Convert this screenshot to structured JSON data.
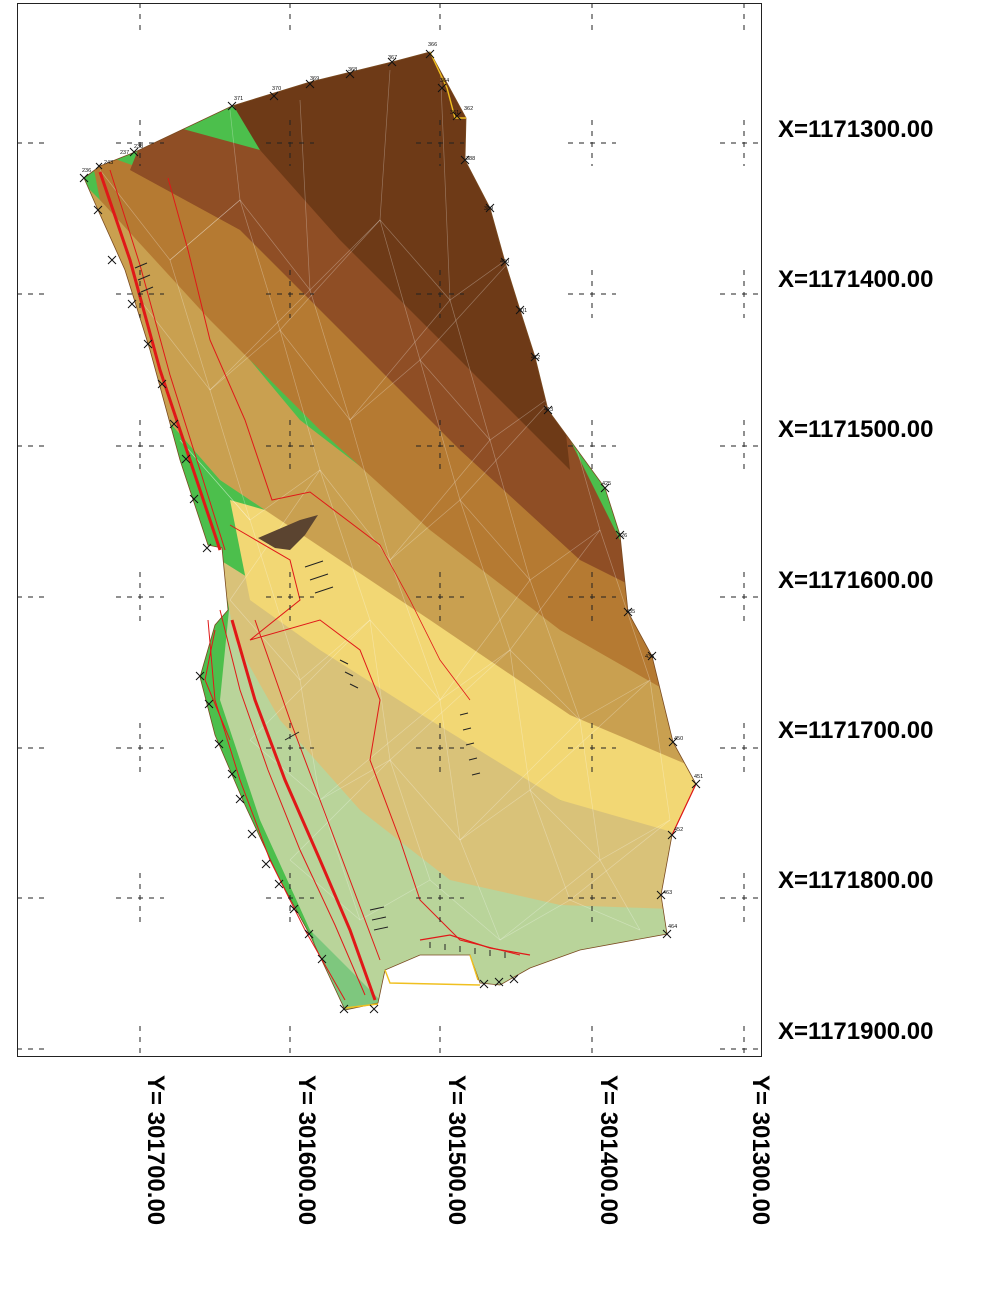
{
  "x_axis_labels": [
    "X=1171300.00",
    "X=1171400.00",
    "X=1171500.00",
    "X=1171600.00",
    "X=1171700.00",
    "X=1171800.00",
    "X=1171900.00"
  ],
  "y_axis_labels": [
    "Y= 301700.00",
    "Y= 301600.00",
    "Y= 301500.00",
    "Y= 301400.00",
    "Y= 301300.00"
  ],
  "point_labels": [
    {
      "id": "p238",
      "text": "238"
    },
    {
      "id": "p237",
      "text": "237"
    },
    {
      "id": "p243",
      "text": "243"
    },
    {
      "id": "p236",
      "text": "236"
    },
    {
      "id": "p371",
      "text": "371"
    },
    {
      "id": "p370",
      "text": "370"
    },
    {
      "id": "p369",
      "text": "369"
    },
    {
      "id": "p368",
      "text": "368"
    },
    {
      "id": "p367",
      "text": "367"
    },
    {
      "id": "p366",
      "text": "366"
    },
    {
      "id": "p364",
      "text": "364"
    },
    {
      "id": "p362",
      "text": "362"
    },
    {
      "id": "p361",
      "text": "361"
    },
    {
      "id": "p388",
      "text": "388"
    },
    {
      "id": "p389",
      "text": "389"
    },
    {
      "id": "p400",
      "text": "400"
    },
    {
      "id": "p401",
      "text": "401"
    },
    {
      "id": "p412",
      "text": "412"
    },
    {
      "id": "p413",
      "text": "413"
    },
    {
      "id": "p425",
      "text": "425"
    },
    {
      "id": "p426",
      "text": "426"
    },
    {
      "id": "p435",
      "text": "435"
    },
    {
      "id": "p436",
      "text": "436"
    },
    {
      "id": "p450",
      "text": "450"
    },
    {
      "id": "p451",
      "text": "451"
    },
    {
      "id": "p452",
      "text": "452"
    },
    {
      "id": "p463",
      "text": "463"
    },
    {
      "id": "p464",
      "text": "464"
    }
  ],
  "colors": {
    "ridge_dark": "#6e3a17",
    "slope_brown": "#8f4e25",
    "mid_ochre": "#b57a32",
    "light_ochre": "#c9a050",
    "sand": "#d9c279",
    "yellow": "#f2d774",
    "pale_green": "#b9d49a",
    "green": "#7ec77e",
    "bright_green": "#4cbf4c",
    "red_line": "#e01818",
    "yellow_line": "#f0c020"
  }
}
